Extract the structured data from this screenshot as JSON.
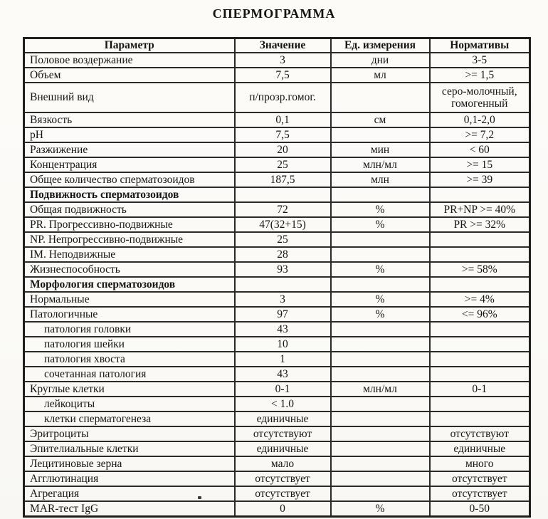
{
  "page": {
    "title": "СПЕРМОГРАММА"
  },
  "table": {
    "columns": [
      "Параметр",
      "Значение",
      "Ед. измерения",
      "Нормативы"
    ],
    "rows": [
      {
        "param": "Половое воздержание",
        "value": "3",
        "unit": "дни",
        "norm": "3-5",
        "style": ""
      },
      {
        "param": "Объем",
        "value": "7,5",
        "unit": "мл",
        "norm": ">= 1,5",
        "style": ""
      },
      {
        "param": "Внешний вид",
        "value": "п/прозр.гомог.",
        "unit": "",
        "norm": "серо-молочный, гомогенный",
        "style": "tall"
      },
      {
        "param": "Вязкость",
        "value": "0,1",
        "unit": "см",
        "norm": "0,1-2,0",
        "style": ""
      },
      {
        "param": "pH",
        "value": "7,5",
        "unit": "",
        "norm": ">= 7,2",
        "style": ""
      },
      {
        "param": "Разжижение",
        "value": "20",
        "unit": "мин",
        "norm": "< 60",
        "style": ""
      },
      {
        "param": "Концентрация",
        "value": "25",
        "unit": "млн/мл",
        "norm": ">= 15",
        "style": ""
      },
      {
        "param": "Общее количество сперматозоидов",
        "value": "187,5",
        "unit": "млн",
        "norm": ">= 39",
        "style": ""
      },
      {
        "param": "Подвижность сперматозоидов",
        "value": "",
        "unit": "",
        "norm": "",
        "style": "section"
      },
      {
        "param": "Общая подвижность",
        "value": "72",
        "unit": "%",
        "norm": "PR+NP >= 40%",
        "style": ""
      },
      {
        "param": "PR. Прогрессивно-подвижные",
        "value": "47(32+15)",
        "unit": "%",
        "norm": "PR >= 32%",
        "style": ""
      },
      {
        "param": "NP. Непрогрессивно-подвижные",
        "value": "25",
        "unit": "",
        "norm": "",
        "style": ""
      },
      {
        "param": "IM. Неподвижные",
        "value": "28",
        "unit": "",
        "norm": "",
        "style": ""
      },
      {
        "param": "Жизнеспособность",
        "value": "93",
        "unit": "%",
        "norm": ">= 58%",
        "style": ""
      },
      {
        "param": "Морфология сперматозоидов",
        "value": "",
        "unit": "",
        "norm": "",
        "style": "section"
      },
      {
        "param": "Нормальные",
        "value": "3",
        "unit": "%",
        "norm": ">= 4%",
        "style": ""
      },
      {
        "param": "Патологичные",
        "value": "97",
        "unit": "%",
        "norm": "<= 96%",
        "style": ""
      },
      {
        "param": "патология головки",
        "value": "43",
        "unit": "",
        "norm": "",
        "style": "indent"
      },
      {
        "param": "патология шейки",
        "value": "10",
        "unit": "",
        "norm": "",
        "style": "indent"
      },
      {
        "param": "патология хвоста",
        "value": "1",
        "unit": "",
        "norm": "",
        "style": "indent"
      },
      {
        "param": "сочетанная патология",
        "value": "43",
        "unit": "",
        "norm": "",
        "style": "indent"
      },
      {
        "param": "Круглые клетки",
        "value": "0-1",
        "unit": "млн/мл",
        "norm": "0-1",
        "style": ""
      },
      {
        "param": "лейкоциты",
        "value": "< 1.0",
        "unit": "",
        "norm": "",
        "style": "indent"
      },
      {
        "param": "клетки сперматогенеза",
        "value": "единичные",
        "unit": "",
        "norm": "",
        "style": "indent"
      },
      {
        "param": "Эритроциты",
        "value": "отсутствуют",
        "unit": "",
        "norm": "отсутствуют",
        "style": ""
      },
      {
        "param": "Эпителиальные клетки",
        "value": "единичные",
        "unit": "",
        "norm": "единичные",
        "style": ""
      },
      {
        "param": "Лецитиновые зерна",
        "value": "мало",
        "unit": "",
        "norm": "много",
        "style": ""
      },
      {
        "param": "Агглютинация",
        "value": "отсутствует",
        "unit": "",
        "norm": "отсутствует",
        "style": ""
      },
      {
        "param": "Агрегация",
        "value": "отсутствует",
        "unit": "",
        "norm": "отсутствует",
        "style": ""
      },
      {
        "param": "MAR-тест IgG",
        "value": "0",
        "unit": "%",
        "norm": "0-50",
        "style": ""
      }
    ]
  }
}
